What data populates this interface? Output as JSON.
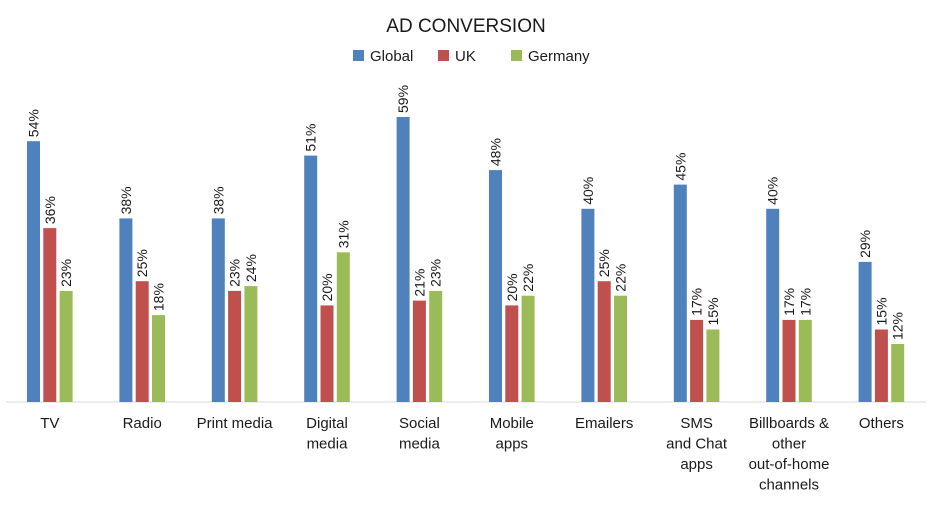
{
  "chart_data": {
    "type": "bar",
    "title": "AD CONVERSION",
    "xlabel": "",
    "ylabel": "",
    "ylim": [
      0,
      60
    ],
    "grid": false,
    "legend_position": "top-center",
    "value_suffix": "%",
    "categories": [
      [
        "TV"
      ],
      [
        "Radio"
      ],
      [
        "Print media"
      ],
      [
        "Digital",
        "media"
      ],
      [
        "Social",
        "media"
      ],
      [
        "Mobile",
        "apps"
      ],
      [
        "Emailers"
      ],
      [
        "SMS",
        "and Chat",
        "apps"
      ],
      [
        "Billboards &",
        "other",
        "out-of-home",
        "channels"
      ],
      [
        "Others"
      ]
    ],
    "series": [
      {
        "name": "Global",
        "color": "#4f81bd",
        "values": [
          54,
          38,
          38,
          51,
          59,
          48,
          40,
          45,
          40,
          29
        ]
      },
      {
        "name": "UK",
        "color": "#c0504d",
        "values": [
          36,
          25,
          23,
          20,
          21,
          20,
          25,
          17,
          17,
          15
        ]
      },
      {
        "name": "Germany",
        "color": "#9bbb59",
        "values": [
          23,
          18,
          24,
          31,
          23,
          22,
          22,
          15,
          17,
          12
        ]
      }
    ]
  }
}
